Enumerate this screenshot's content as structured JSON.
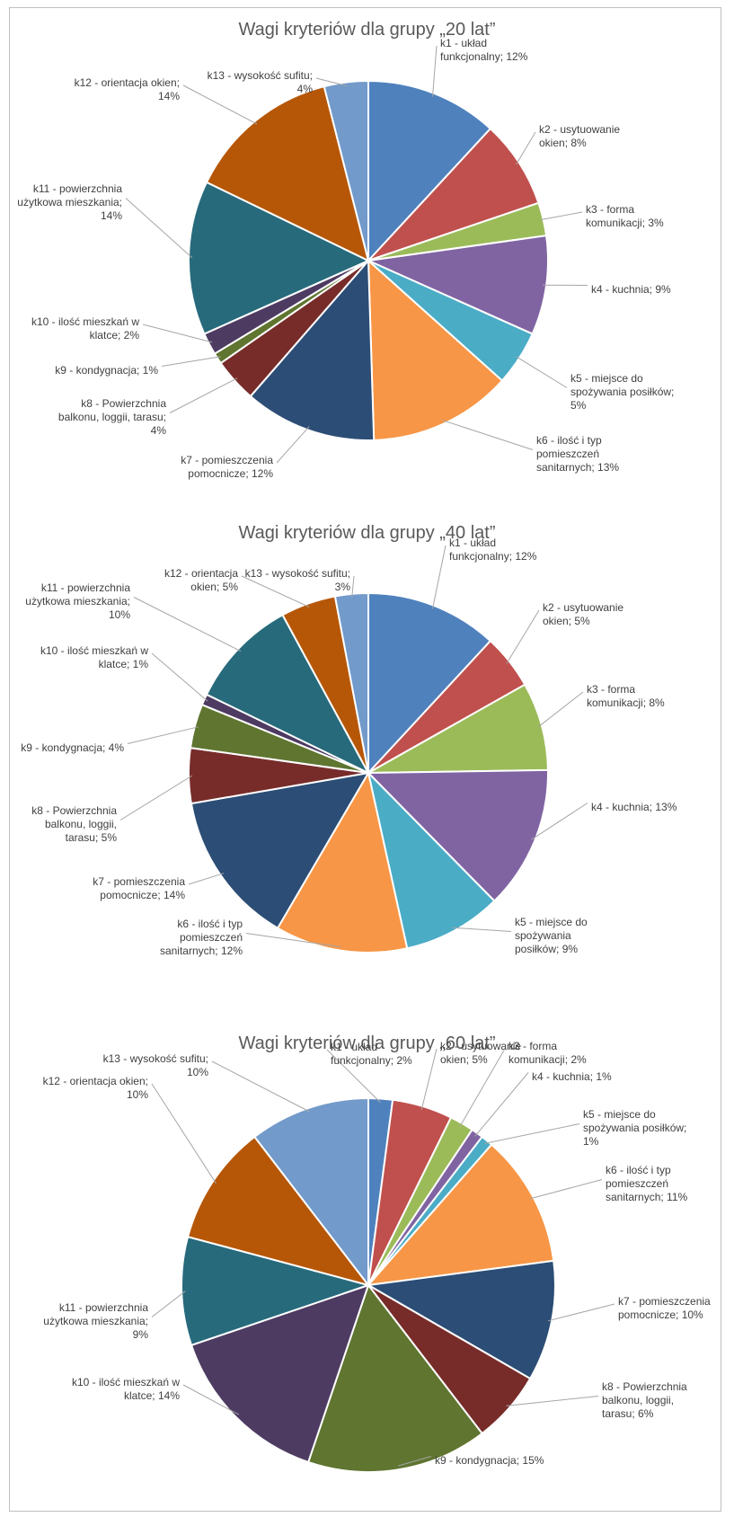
{
  "chart_data": [
    {
      "type": "pie",
      "title": "Wagi kryteriów dla grupy „20 lat”",
      "categories": [
        "k1 - układ funkcjonalny",
        "k2 - usytuowanie okien",
        "k3 - forma komunikacji",
        "k4 - kuchnia",
        "k5 - miejsce do spożywania posiłków",
        "k6 - ilość i typ pomieszczeń sanitarnych",
        "k7 - pomieszczenia pomocnicze",
        "k8 - Powierzchnia balkonu, loggii, tarasu",
        "k9 - kondygnacja",
        "k10 - ilość mieszkań w klatce",
        "k11 - powierzchnia użytkowa mieszkania",
        "k12 - orientacja okien",
        "k13 - wysokość sufitu"
      ],
      "values": [
        12,
        8,
        3,
        9,
        5,
        13,
        12,
        4,
        1,
        2,
        14,
        14,
        4
      ],
      "labels": [
        [
          "k1 - układ",
          "funkcjonalny; 12%"
        ],
        [
          "k2 - usytuowanie",
          "okien; 8%"
        ],
        [
          "k3 - forma",
          "komunikacji; 3%"
        ],
        [
          "k4 - kuchnia; 9%"
        ],
        [
          "k5 - miejsce do",
          "spożywania posiłków;",
          "5%"
        ],
        [
          "k6 - ilość i typ",
          "pomieszczeń",
          "sanitarnych; 13%"
        ],
        [
          "k7 - pomieszczenia",
          "pomocnicze; 12%"
        ],
        [
          "k8 - Powierzchnia",
          "balkonu, loggii, tarasu;",
          "4%"
        ],
        [
          "k9 - kondygnacja; 1%"
        ],
        [
          "k10 - ilość mieszkań w",
          "klatce; 2%"
        ],
        [
          "k11 - powierzchnia",
          "użytkowa mieszkania;",
          "14%"
        ],
        [
          "k12 - orientacja okien;",
          "14%"
        ],
        [
          "k13 - wysokość sufitu;",
          "4%"
        ]
      ]
    },
    {
      "type": "pie",
      "title": "Wagi kryteriów dla grupy „40 lat”",
      "categories": [
        "k1 - układ funkcjonalny",
        "k2 - usytuowanie okien",
        "k3 - forma komunikacji",
        "k4 - kuchnia",
        "k5 - miejsce do spożywania posiłków",
        "k6 - ilość i typ pomieszczeń sanitarnych",
        "k7 - pomieszczenia pomocnicze",
        "k8 - Powierzchnia balkonu, loggii, tarasu",
        "k9 - kondygnacja",
        "k10 - ilość mieszkań w klatce",
        "k11 - powierzchnia użytkowa mieszkania",
        "k12 - orientacja okien",
        "k13 - wysokość sufitu"
      ],
      "values": [
        12,
        5,
        8,
        13,
        9,
        12,
        14,
        5,
        4,
        1,
        10,
        5,
        3
      ],
      "labels": [
        [
          "k1 - układ",
          "funkcjonalny; 12%"
        ],
        [
          "k2 - usytuowanie",
          "okien; 5%"
        ],
        [
          "k3 - forma",
          "komunikacji; 8%"
        ],
        [
          "k4 - kuchnia; 13%"
        ],
        [
          "k5 - miejsce do",
          "spożywania",
          "posiłków; 9%"
        ],
        [
          "k6 - ilość i typ",
          "pomieszczeń",
          "sanitarnych; 12%"
        ],
        [
          "k7 - pomieszczenia",
          "pomocnicze; 14%"
        ],
        [
          "k8 - Powierzchnia",
          "balkonu, loggii,",
          "tarasu; 5%"
        ],
        [
          "k9 - kondygnacja; 4%"
        ],
        [
          "k10 - ilość mieszkań w",
          "klatce; 1%"
        ],
        [
          "k11 - powierzchnia",
          "użytkowa mieszkania;",
          "10%"
        ],
        [
          "k12 - orientacja",
          "okien; 5%"
        ],
        [
          "k13 - wysokość sufitu;",
          "3%"
        ]
      ]
    },
    {
      "type": "pie",
      "title": "Wagi kryteriów dla grupy „60 lat”",
      "categories": [
        "k1 - układ funkcjonalny",
        "k2 - usytuowanie okien",
        "k3 - forma komunikacji",
        "k4 - kuchnia",
        "k5 - miejsce do spożywania posiłków",
        "k6 - ilość i typ pomieszczeń sanitarnych",
        "k7 - pomieszczenia pomocnicze",
        "k8 - Powierzchnia balkonu, loggii, tarasu",
        "k9 - kondygnacja",
        "k10 - ilość mieszkań w klatce",
        "k11 - powierzchnia użytkowa mieszkania",
        "k12 - orientacja okien",
        "k13 - wysokość sufitu"
      ],
      "values": [
        2,
        5,
        2,
        1,
        1,
        11,
        10,
        6,
        15,
        14,
        9,
        10,
        10
      ],
      "labels": [
        [
          "k1 - układ",
          "funkcjonalny; 2%"
        ],
        [
          "k2 - usytuowanie",
          "okien; 5%"
        ],
        [
          "k3 - forma",
          "komunikacji; 2%"
        ],
        [
          "k4 - kuchnia; 1%"
        ],
        [
          "k5 - miejsce do",
          "spożywania posiłków;",
          "1%"
        ],
        [
          "k6 - ilość i typ",
          "pomieszczeń",
          "sanitarnych; 11%"
        ],
        [
          "k7 - pomieszczenia",
          "pomocnicze; 10%"
        ],
        [
          "k8 - Powierzchnia",
          "balkonu, loggii,",
          "tarasu; 6%"
        ],
        [
          "k9 - kondygnacja; 15%"
        ],
        [
          "k10 - ilość mieszkań w",
          "klatce; 14%"
        ],
        [
          "k11 - powierzchnia",
          "użytkowa mieszkania;",
          "9%"
        ],
        [
          "k12 - orientacja okien;",
          "10%"
        ],
        [
          "k13 - wysokość sufitu;",
          "10%"
        ]
      ]
    }
  ],
  "colors": [
    "#4F81BD",
    "#C0504D",
    "#9BBB59",
    "#8064A2",
    "#4BACC6",
    "#F79646",
    "#2C4D75",
    "#772C2A",
    "#5F7530",
    "#4D3B62",
    "#276A7C",
    "#B65708",
    "#729ACA"
  ]
}
